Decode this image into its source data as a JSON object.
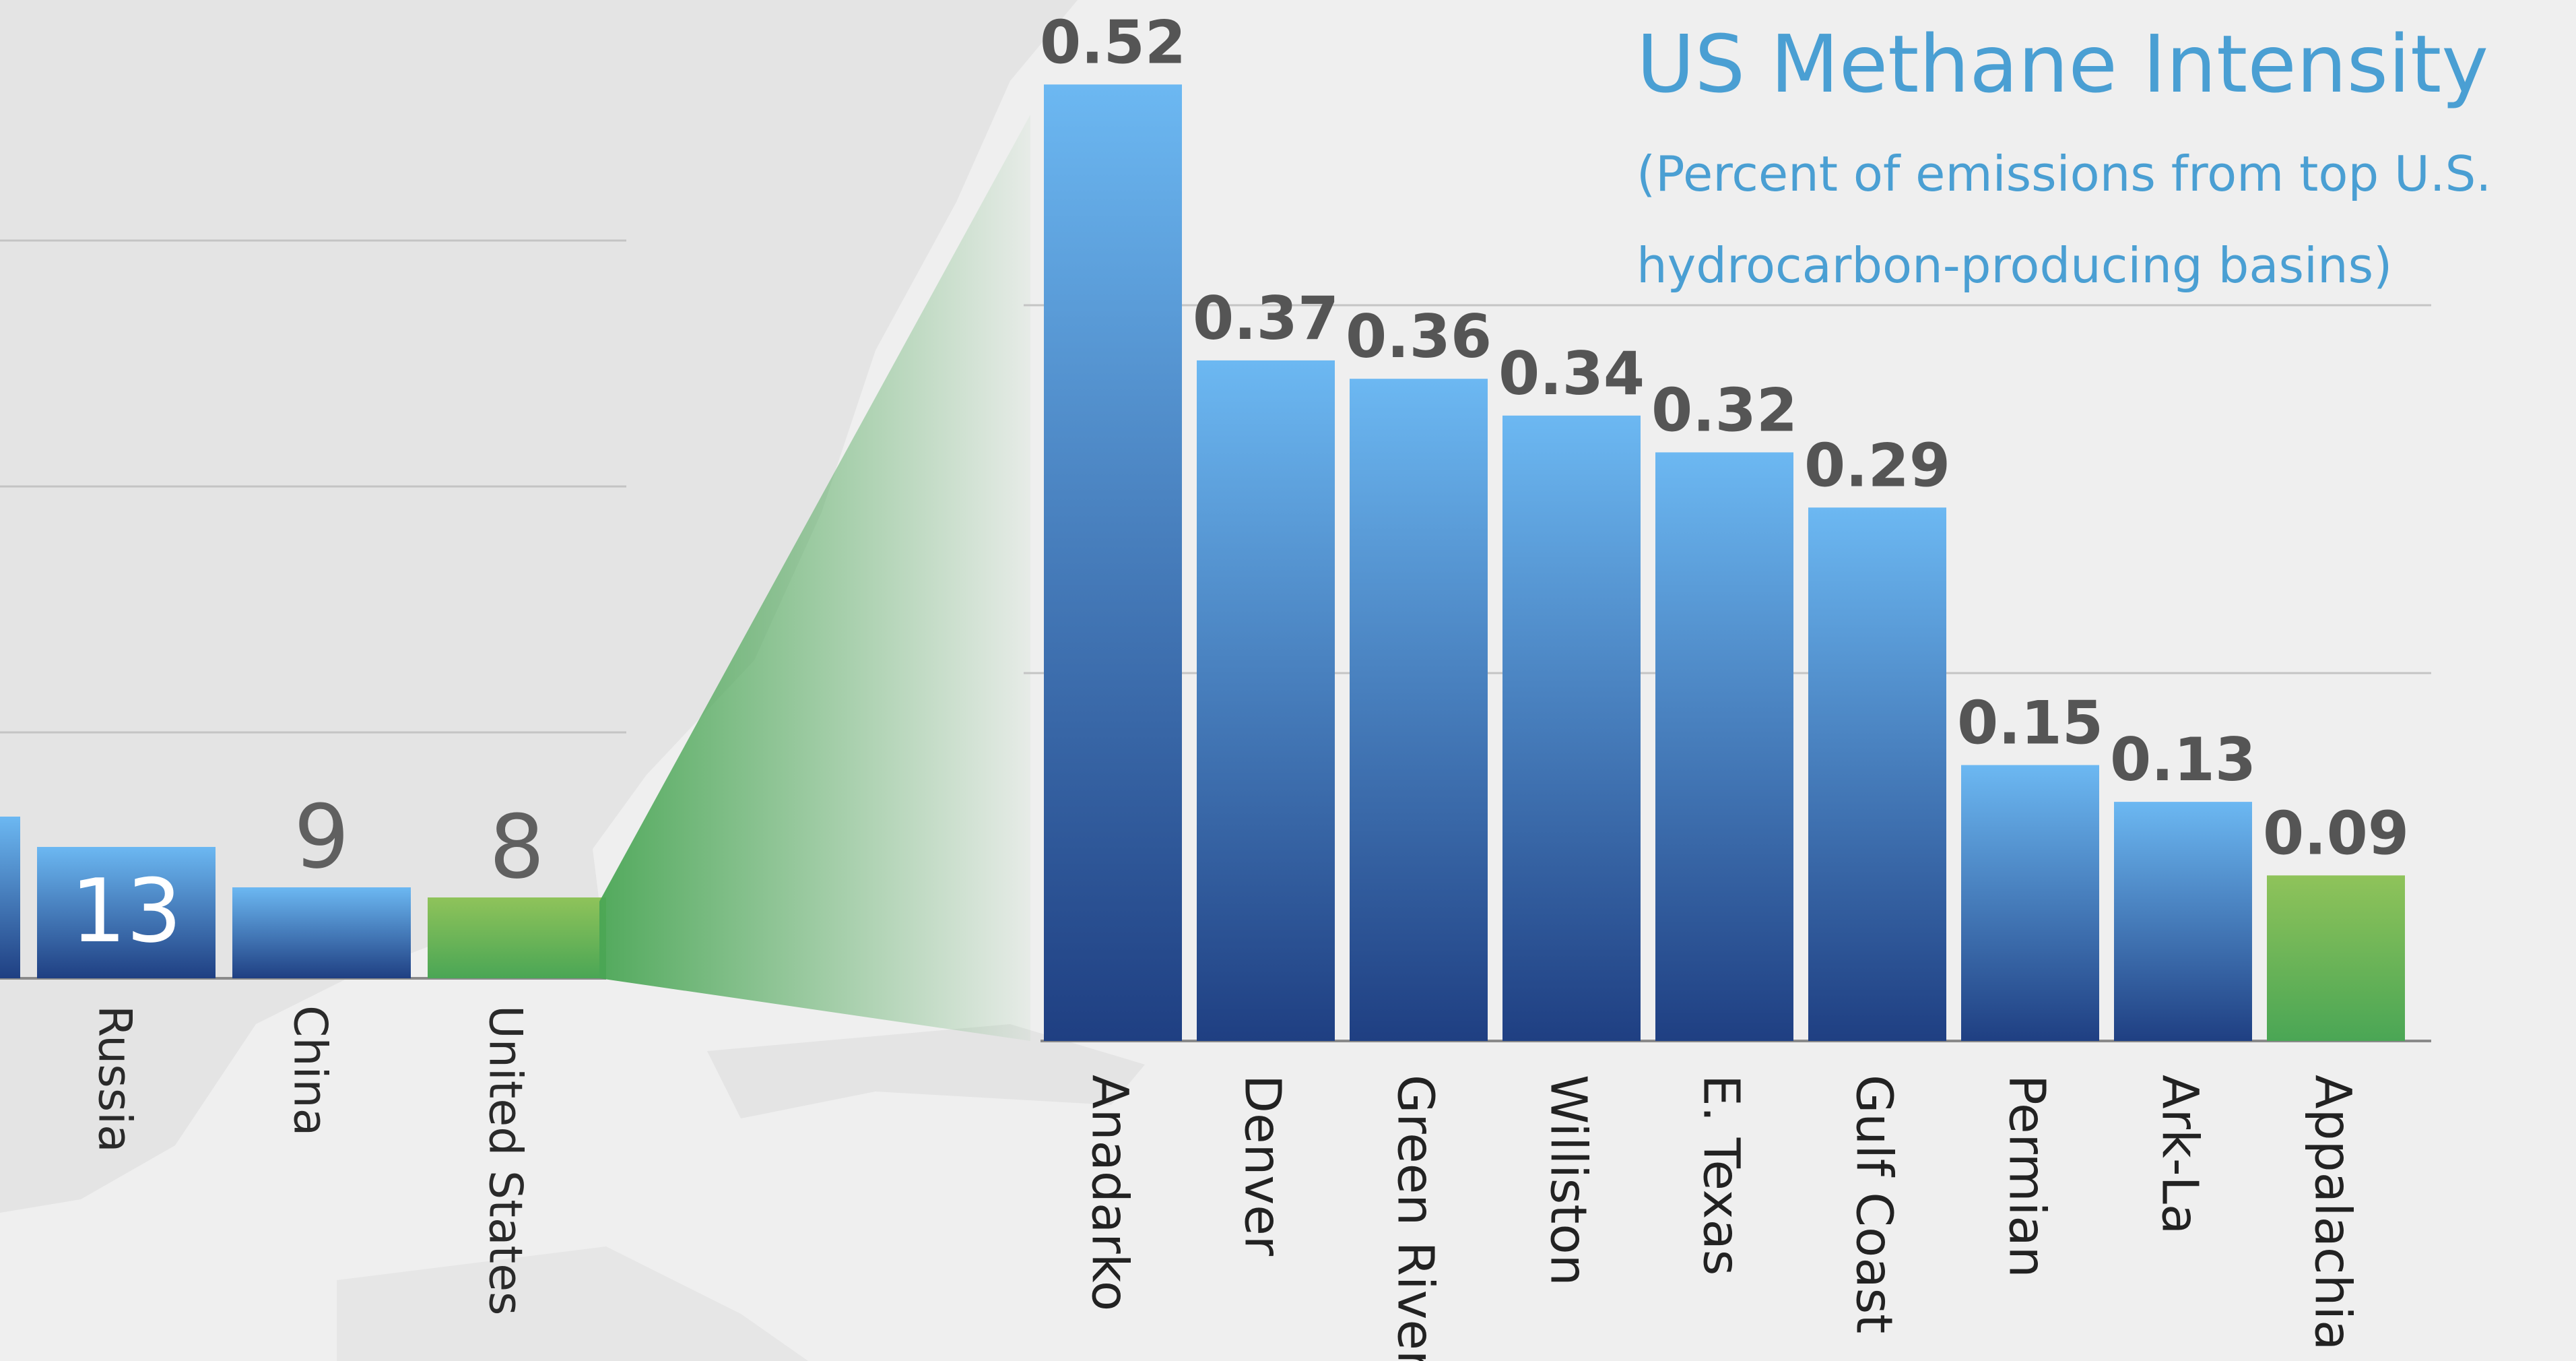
{
  "chart_data": [
    {
      "type": "bar",
      "categories": [
        "",
        "Russia",
        "China",
        "United States"
      ],
      "values": [
        16,
        13,
        9,
        8
      ],
      "value_labels": [
        "",
        "13",
        "9",
        "8"
      ],
      "highlight_category": "United States",
      "colors": {
        "bar_top": "#6cb8f2",
        "bar_bottom": "#1f3f82",
        "highlight_top": "#8fc35a",
        "highlight_bottom": "#4aa655",
        "value_label": "#606060",
        "value_label_inside": "#ffffff"
      },
      "grid": true
    },
    {
      "type": "bar",
      "title": "US Methane Intensity",
      "subtitle_lines": [
        "(Percent of emissions from top U.S.",
        "hydrocarbon-producing basins)"
      ],
      "categories": [
        "Anadarko",
        "Denver",
        "Green River",
        "Williston",
        "E. Texas",
        "Gulf Coast",
        "Permian",
        "Ark-La",
        "Appalachia"
      ],
      "values": [
        0.52,
        0.37,
        0.36,
        0.34,
        0.32,
        0.29,
        0.15,
        0.13,
        0.09
      ],
      "value_labels": [
        "0.52",
        "0.37",
        "0.36",
        "0.34",
        "0.32",
        "0.29",
        "0.15",
        "0.13",
        "0.09"
      ],
      "ylim": [
        0,
        0.6
      ],
      "grid": true,
      "highlight_category": "Appalachia",
      "colors": {
        "title": "#4a9fd3",
        "bar_top": "#6cb8f2",
        "bar_bottom": "#1f3f82",
        "highlight_top": "#8fc35a",
        "highlight_bottom": "#4aa655",
        "value_label": "#555555",
        "axis_label": "#222222",
        "zoom_wedge": "#4aa655"
      }
    }
  ]
}
